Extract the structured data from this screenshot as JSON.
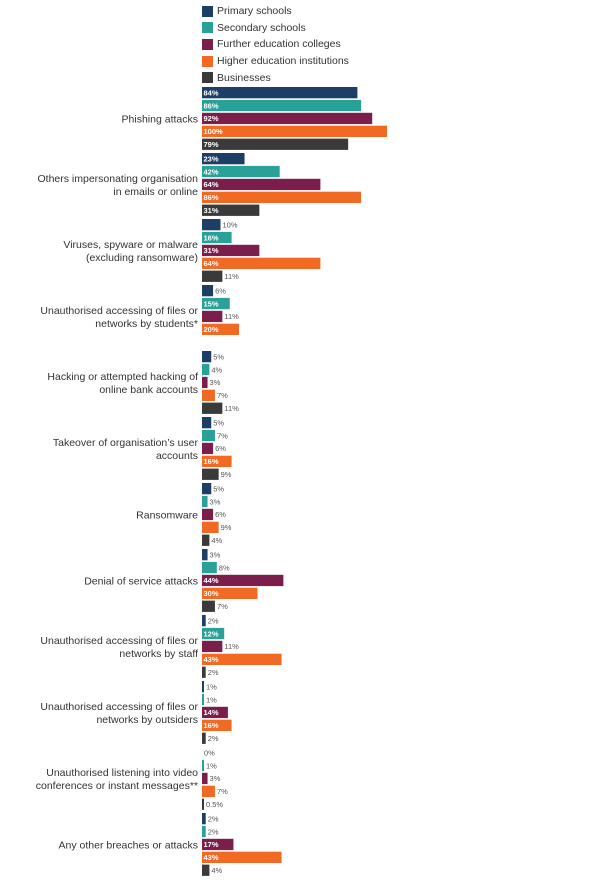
{
  "chart_data": {
    "type": "bar",
    "orientation": "horizontal",
    "legend_position": "top",
    "grid": false,
    "xlim": [
      0,
      100
    ],
    "categories": [
      "Phishing attacks",
      "Others impersonating organisation in emails or online",
      "Viruses, spyware or malware (excluding ransomware)",
      "Unauthorised accessing of files or networks by students*",
      "Hacking or attempted hacking of online bank accounts",
      "Takeover of organisation’s user accounts",
      "Ransomware",
      "Denial of service attacks",
      "Unauthorised accessing of files or networks by staff",
      "Unauthorised accessing of files or networks by outsiders",
      "Unauthorised listening into video conferences or instant messages**",
      "Any other breaches or attacks"
    ],
    "category_lines": [
      [
        "Phishing attacks"
      ],
      [
        "Others impersonating organisation",
        "in emails or online"
      ],
      [
        "Viruses, spyware or malware",
        "(excluding ransomware)"
      ],
      [
        "Unauthorised accessing of files or",
        "networks by students*"
      ],
      [
        "Hacking or attempted hacking of",
        "online bank accounts"
      ],
      [
        "Takeover of organisation’s user",
        "accounts"
      ],
      [
        "Ransomware"
      ],
      [
        "Denial of service attacks"
      ],
      [
        "Unauthorised accessing of files or",
        "networks by staff"
      ],
      [
        "Unauthorised accessing of files or",
        "networks by outsiders"
      ],
      [
        "Unauthorised listening into video",
        "conferences or instant messages**"
      ],
      [
        "Any other breaches or attacks"
      ]
    ],
    "series": [
      {
        "name": "Primary schools",
        "color": "#1d3f66",
        "values": [
          84,
          23,
          10,
          6,
          5,
          5,
          5,
          3,
          2,
          1,
          0,
          2
        ],
        "labels": [
          "84%",
          "23%",
          "10%",
          "6%",
          "5%",
          "5%",
          "5%",
          "3%",
          "2%",
          "1%",
          "0%",
          "2%"
        ]
      },
      {
        "name": "Secondary schools",
        "color": "#2aa198",
        "values": [
          86,
          42,
          16,
          15,
          4,
          7,
          3,
          8,
          12,
          1,
          1,
          2
        ],
        "labels": [
          "86%",
          "42%",
          "16%",
          "15%",
          "4%",
          "7%",
          "3%",
          "8%",
          "12%",
          "1%",
          "1%",
          "2%"
        ]
      },
      {
        "name": "Further education colleges",
        "color": "#7b1e4c",
        "values": [
          92,
          64,
          31,
          11,
          3,
          6,
          6,
          44,
          11,
          14,
          3,
          17
        ],
        "labels": [
          "92%",
          "64%",
          "31%",
          "11%",
          "3%",
          "6%",
          "6%",
          "44%",
          "11%",
          "14%",
          "3%",
          "17%"
        ]
      },
      {
        "name": "Higher education institutions",
        "color": "#f06a24",
        "values": [
          100,
          86,
          64,
          20,
          7,
          16,
          9,
          30,
          43,
          16,
          7,
          43
        ],
        "labels": [
          "100%",
          "86%",
          "64%",
          "20%",
          "7%",
          "16%",
          "9%",
          "30%",
          "43%",
          "16%",
          "7%",
          "43%"
        ]
      },
      {
        "name": "Businesses",
        "color": "#3a3a3a",
        "values": [
          79,
          31,
          11,
          null,
          11,
          9,
          4,
          7,
          2,
          2,
          0.5,
          4
        ],
        "labels": [
          "79%",
          "31%",
          "11%",
          "",
          "11%",
          "9%",
          "4%",
          "7%",
          "2%",
          "2%",
          "0.5%",
          "4%"
        ]
      }
    ]
  }
}
